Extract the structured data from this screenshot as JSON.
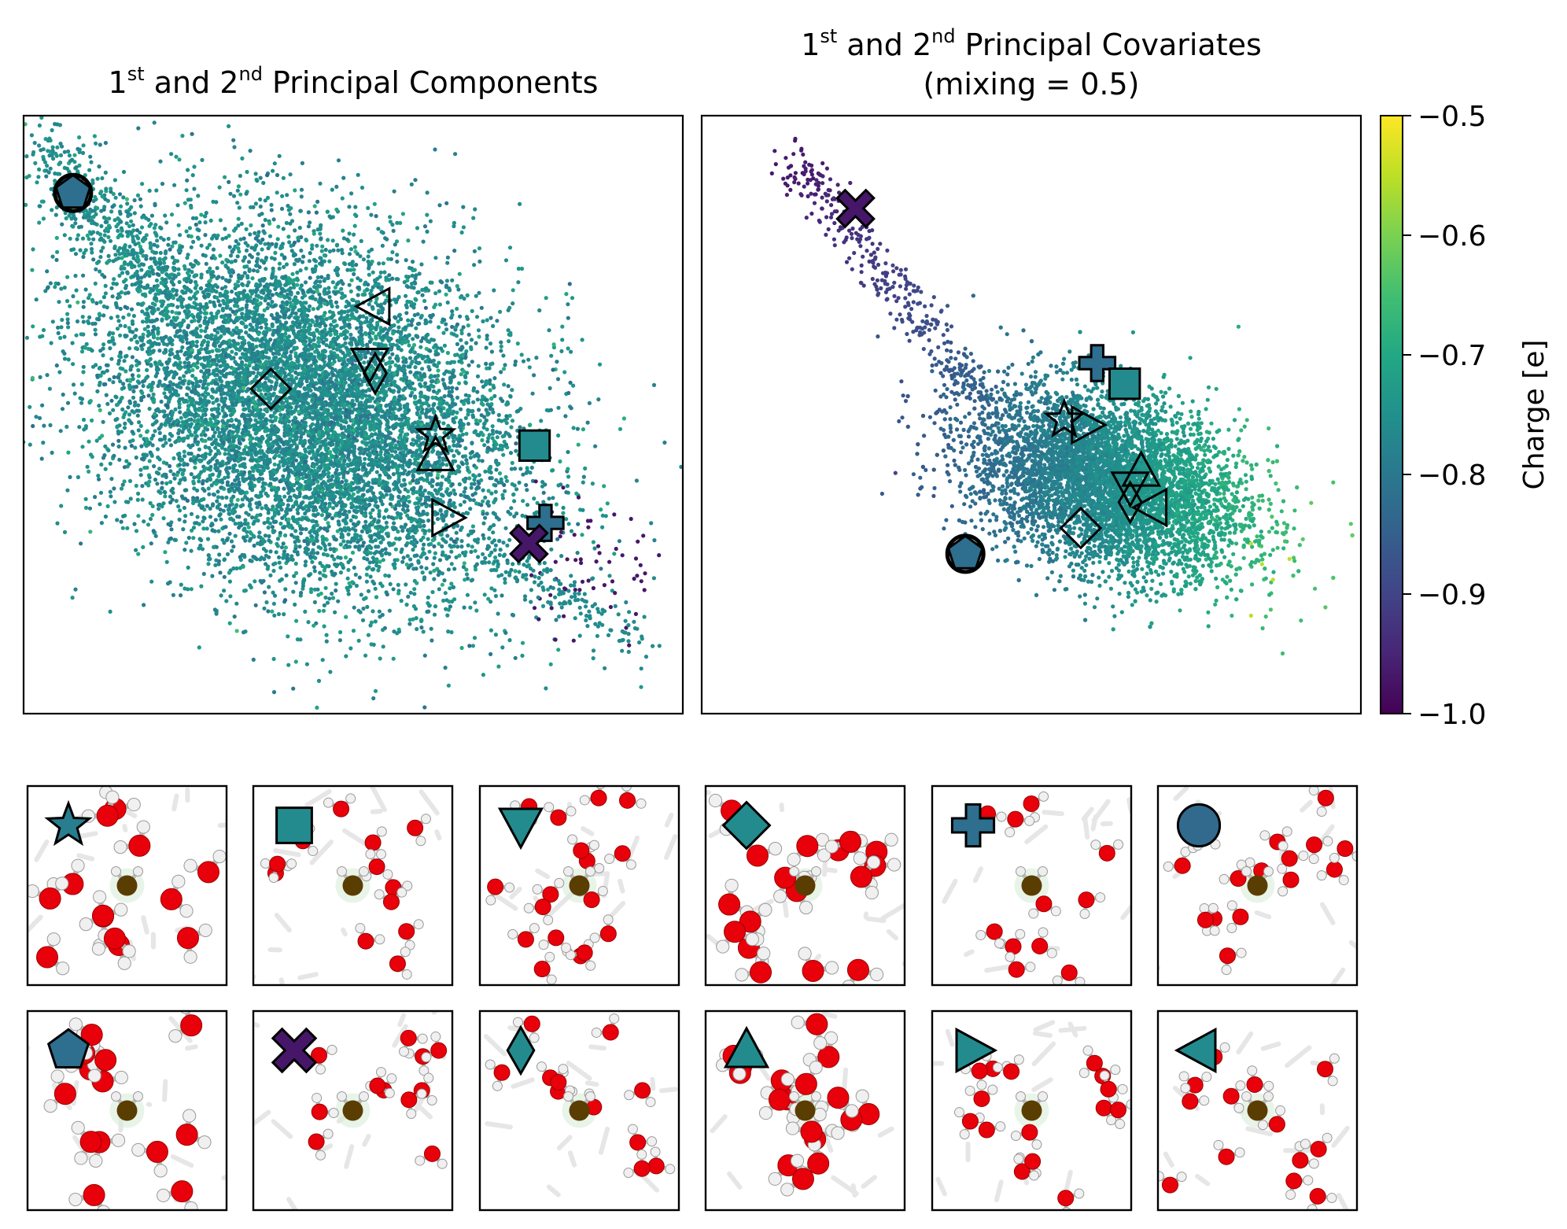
{
  "chart_data": [
    {
      "type": "scatter",
      "title": "1st and 2nd Principal Components",
      "title_parts": {
        "n1": "1",
        "sup1": "st",
        "mid": " and 2",
        "sup2": "nd",
        "rest": " Principal Components"
      },
      "xlabel": "",
      "ylabel": "",
      "axis_ticks": "none",
      "cloud": {
        "center": [
          0.0,
          0.0
        ],
        "spread": [
          1.0,
          0.9
        ],
        "dominant_charge": -0.75
      },
      "markers": [
        {
          "shape": "pentagon",
          "x": -2.35,
          "y": 2.25,
          "charge": -0.82,
          "filled": true
        },
        {
          "shape": "triangle-left",
          "x": 0.4,
          "y": 1.15,
          "filled": false
        },
        {
          "shape": "triangle-down",
          "x": 0.35,
          "y": 0.6,
          "filled": false
        },
        {
          "shape": "thin-diamond",
          "x": 0.4,
          "y": 0.5,
          "filled": false
        },
        {
          "shape": "diamond",
          "x": -0.55,
          "y": 0.35,
          "filled": false
        },
        {
          "shape": "star",
          "x": 0.95,
          "y": -0.1,
          "filled": false
        },
        {
          "shape": "triangle-up",
          "x": 0.95,
          "y": -0.3,
          "filled": false
        },
        {
          "shape": "triangle-right",
          "x": 1.05,
          "y": -0.9,
          "filled": false
        },
        {
          "shape": "square",
          "x": 1.85,
          "y": -0.2,
          "charge": -0.76,
          "filled": true
        },
        {
          "shape": "plus",
          "x": 1.95,
          "y": -0.95,
          "charge": -0.82,
          "filled": true
        },
        {
          "shape": "x",
          "x": 1.8,
          "y": -1.15,
          "charge": -0.97,
          "filled": true
        }
      ]
    },
    {
      "type": "scatter",
      "title": "1st and 2nd Principal Covariates (mixing = 0.5)",
      "title_parts": {
        "n1": "1",
        "sup1": "st",
        "mid": " and 2",
        "sup2": "nd",
        "rest": " Principal Covariates",
        "line2": "(mixing = 0.5)"
      },
      "xlabel": "",
      "ylabel": "",
      "axis_ticks": "none",
      "markers": [
        {
          "shape": "x",
          "x": -1.6,
          "y": 2.1,
          "charge": -0.97,
          "filled": true
        },
        {
          "shape": "plus",
          "x": 0.6,
          "y": 0.6,
          "charge": -0.82,
          "filled": true
        },
        {
          "shape": "square",
          "x": 0.85,
          "y": 0.4,
          "charge": -0.76,
          "filled": true
        },
        {
          "shape": "star",
          "x": 0.3,
          "y": 0.05,
          "filled": false
        },
        {
          "shape": "triangle-right",
          "x": 0.5,
          "y": 0.0,
          "filled": false
        },
        {
          "shape": "triangle-up",
          "x": 1.0,
          "y": -0.45,
          "filled": false
        },
        {
          "shape": "triangle-down",
          "x": 0.9,
          "y": -0.6,
          "filled": false
        },
        {
          "shape": "thin-diamond",
          "x": 0.9,
          "y": -0.75,
          "filled": false
        },
        {
          "shape": "triangle-left",
          "x": 1.1,
          "y": -0.8,
          "filled": false
        },
        {
          "shape": "diamond",
          "x": 0.45,
          "y": -1.0,
          "filled": false
        },
        {
          "shape": "pentagon",
          "x": -0.6,
          "y": -1.25,
          "charge": -0.82,
          "filled": true
        }
      ]
    }
  ],
  "colorbar": {
    "label": "Charge [e]",
    "min": -1.0,
    "max": -0.5,
    "ticks": [
      -1.0,
      -0.9,
      -0.8,
      -0.7,
      -0.6,
      -0.5
    ],
    "tick_labels": [
      "−1.0",
      "−0.9",
      "−0.8",
      "−0.7",
      "−0.6",
      "−0.5"
    ],
    "colormap": "viridis"
  },
  "snapshots": [
    {
      "marker": "star",
      "charge": -0.79
    },
    {
      "marker": "square",
      "charge": -0.76
    },
    {
      "marker": "triangle-down",
      "charge": -0.76
    },
    {
      "marker": "diamond",
      "charge": -0.76
    },
    {
      "marker": "plus",
      "charge": -0.82
    },
    {
      "marker": "circle",
      "charge": -0.83
    },
    {
      "marker": "pentagon",
      "charge": -0.82
    },
    {
      "marker": "x",
      "charge": -0.97
    },
    {
      "marker": "thin-diamond",
      "charge": -0.76
    },
    {
      "marker": "triangle-up",
      "charge": -0.76
    },
    {
      "marker": "triangle-right",
      "charge": -0.76
    },
    {
      "marker": "triangle-left",
      "charge": -0.76
    }
  ],
  "colors": {
    "oxygen": "#e8000b",
    "hydrogen": "#f0f0f0",
    "solute": "#5a3d00",
    "frame": "#000000"
  }
}
